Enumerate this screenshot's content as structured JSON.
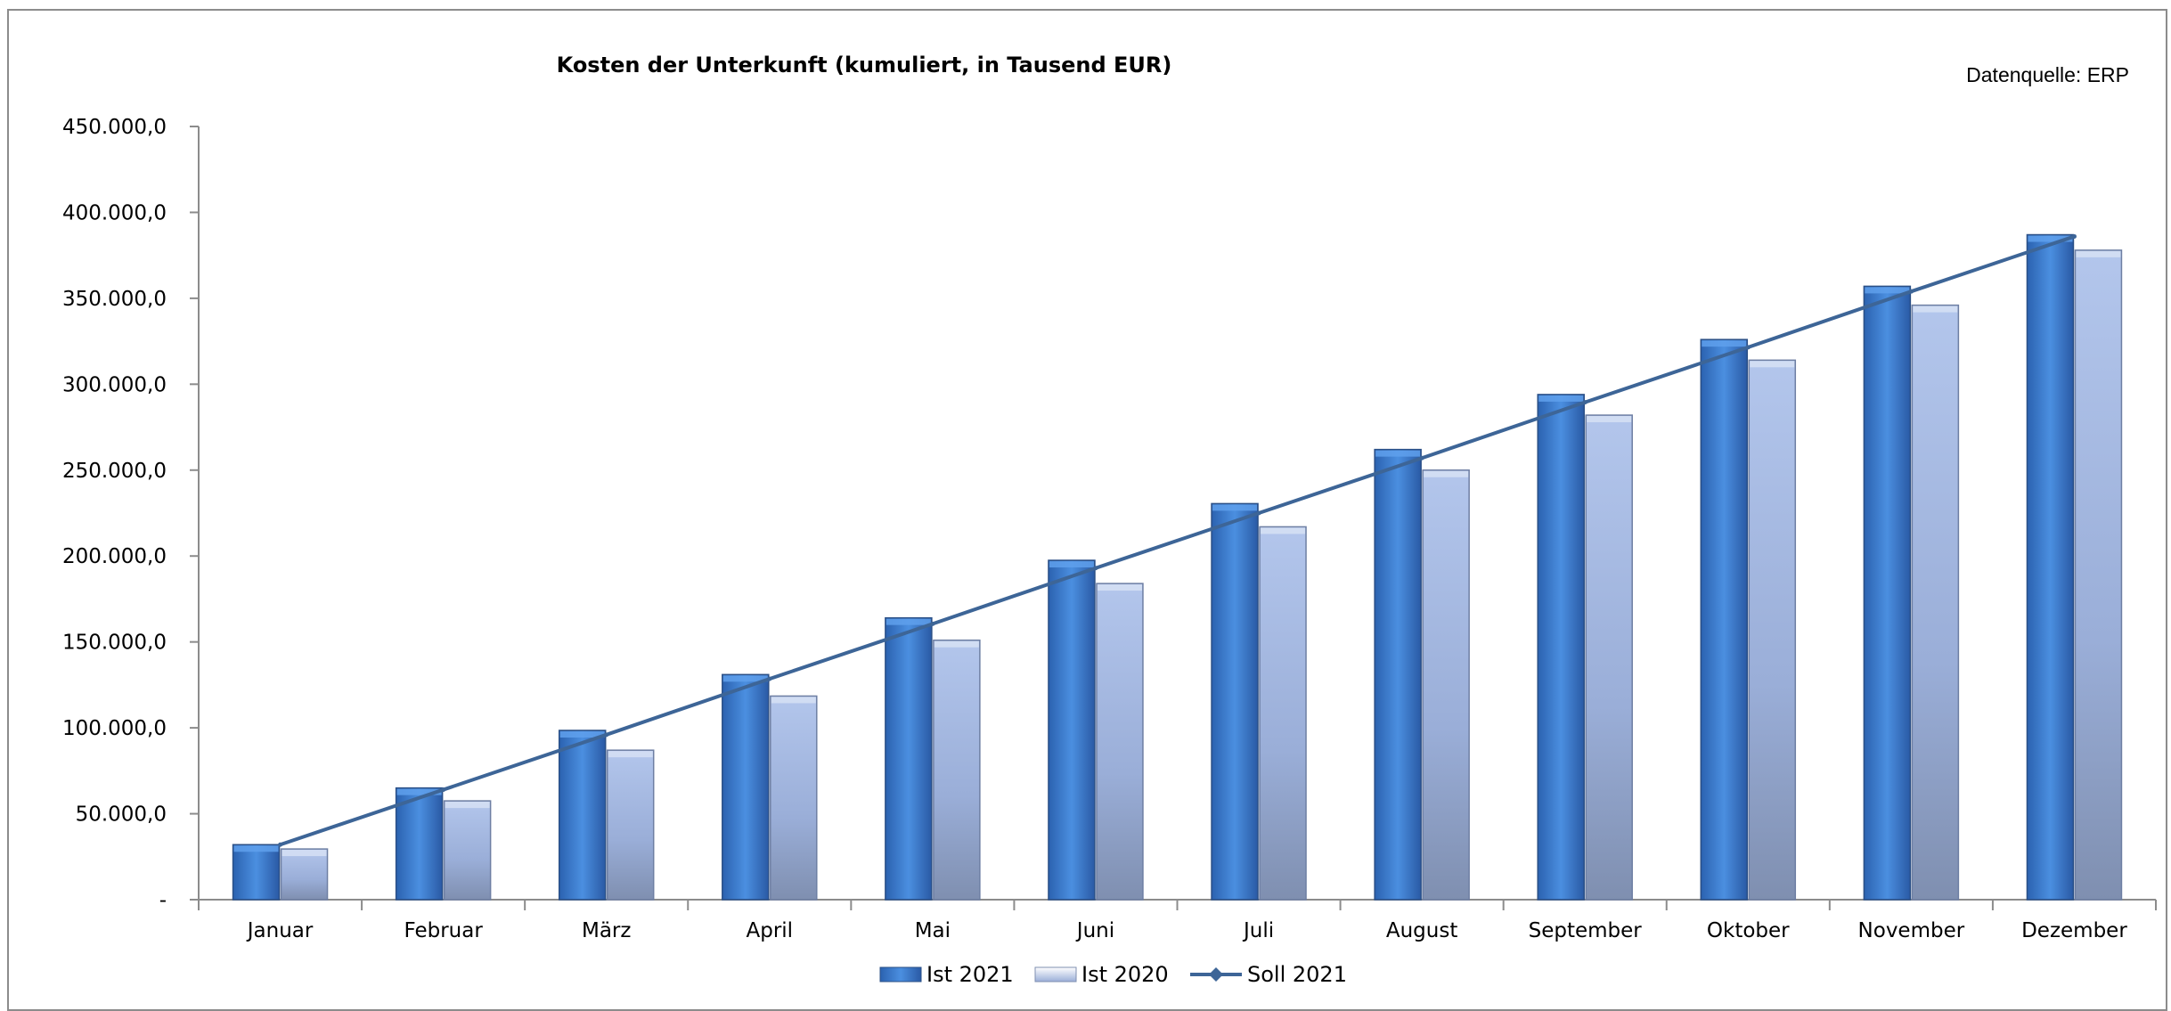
{
  "chart_data": {
    "type": "bar",
    "title": "Kosten der Unterkunft (kumuliert, in Tausend EUR)",
    "source_note": "Datenquelle: ERP",
    "categories": [
      "Januar",
      "Februar",
      "März",
      "April",
      "Mai",
      "Juni",
      "Juli",
      "August",
      "September",
      "Oktober",
      "November",
      "Dezember"
    ],
    "series": [
      {
        "name": "Ist 2021",
        "kind": "bar",
        "color": "#3a78c9",
        "values": [
          32000,
          65000,
          98500,
          131000,
          164000,
          197500,
          230500,
          262000,
          294000,
          326000,
          357000,
          387000
        ]
      },
      {
        "name": "Ist 2020",
        "kind": "bar",
        "color": "#9fb3dd",
        "values": [
          29500,
          57500,
          87000,
          118500,
          151000,
          184000,
          217000,
          250000,
          282000,
          314000,
          346000,
          378000
        ]
      },
      {
        "name": "Soll 2021",
        "kind": "line",
        "color": "#3d6597",
        "values": [
          32000,
          64000,
          96000,
          128500,
          160500,
          193000,
          225000,
          257000,
          289500,
          321500,
          354000,
          386000
        ]
      }
    ],
    "ylim": [
      0,
      450000
    ],
    "yticks": [
      0,
      50000,
      100000,
      150000,
      200000,
      250000,
      300000,
      350000,
      400000,
      450000
    ],
    "ytick_labels": [
      "-",
      "50.000,0",
      "100.000,0",
      "150.000,0",
      "200.000,0",
      "250.000,0",
      "300.000,0",
      "350.000,0",
      "400.000,0",
      "450.000,0"
    ],
    "grid": false,
    "legend_position": "bottom-center"
  }
}
